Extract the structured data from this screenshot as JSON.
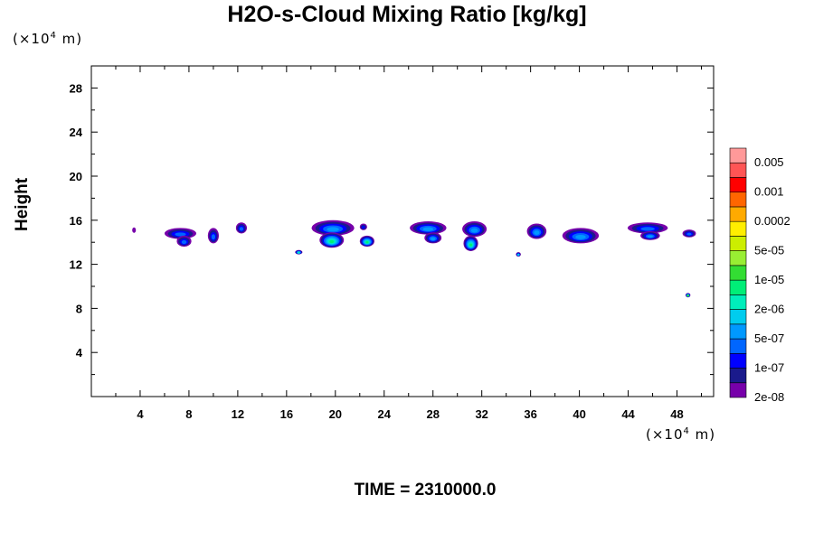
{
  "chart_data": {
    "type": "heatmap",
    "title": "H2O-s-Cloud Mixing Ratio [kg/kg]",
    "ylabel": "Height",
    "xlabel": "",
    "x_unit": {
      "prefix": "(×10",
      "exp": "4",
      "suffix": " m)"
    },
    "y_unit": {
      "prefix": "(×10",
      "exp": "4",
      "suffix": " m)"
    },
    "xlim": [
      0,
      51
    ],
    "ylim": [
      0,
      30
    ],
    "x_ticks": [
      4,
      8,
      12,
      16,
      20,
      24,
      28,
      32,
      36,
      40,
      44,
      48
    ],
    "y_ticks": [
      4,
      8,
      12,
      16,
      20,
      24,
      28
    ],
    "colorbar": {
      "labels": [
        "0.005",
        "0.001",
        "0.0002",
        "5e-05",
        "1e-05",
        "2e-06",
        "5e-07",
        "1e-07",
        "2e-08"
      ],
      "colors": [
        "#7700aa",
        "#1a1a8c",
        "#0000ff",
        "#0066ff",
        "#0099ff",
        "#00ccee",
        "#00eebb",
        "#00ee77",
        "#33dd33",
        "#99ee33",
        "#ccee00",
        "#ffee00",
        "#ffaa00",
        "#ff6600",
        "#ff0000",
        "#ff5555",
        "#ff9999"
      ]
    },
    "clouds": [
      {
        "x": 3.5,
        "y": 15.1,
        "w": 0.3,
        "h": 0.5,
        "max": 0
      },
      {
        "x": 7.3,
        "y": 14.8,
        "w": 2.6,
        "h": 1.0,
        "max": 3
      },
      {
        "x": 7.6,
        "y": 14.1,
        "w": 1.2,
        "h": 1.0,
        "max": 3
      },
      {
        "x": 10.0,
        "y": 14.6,
        "w": 0.9,
        "h": 1.4,
        "max": 3
      },
      {
        "x": 12.3,
        "y": 15.3,
        "w": 0.9,
        "h": 1.0,
        "max": 3
      },
      {
        "x": 19.8,
        "y": 15.3,
        "w": 3.5,
        "h": 1.4,
        "max": 4
      },
      {
        "x": 19.7,
        "y": 14.2,
        "w": 2.0,
        "h": 1.4,
        "max": 7
      },
      {
        "x": 17.0,
        "y": 13.1,
        "w": 0.6,
        "h": 0.4,
        "max": 6
      },
      {
        "x": 22.3,
        "y": 15.4,
        "w": 0.6,
        "h": 0.6,
        "max": 2
      },
      {
        "x": 22.6,
        "y": 14.1,
        "w": 1.2,
        "h": 1.0,
        "max": 7
      },
      {
        "x": 27.6,
        "y": 15.3,
        "w": 3.0,
        "h": 1.2,
        "max": 4
      },
      {
        "x": 28.0,
        "y": 14.4,
        "w": 1.4,
        "h": 1.0,
        "max": 4
      },
      {
        "x": 31.4,
        "y": 15.2,
        "w": 2.0,
        "h": 1.4,
        "max": 4
      },
      {
        "x": 31.1,
        "y": 13.9,
        "w": 1.2,
        "h": 1.4,
        "max": 7
      },
      {
        "x": 35.0,
        "y": 12.9,
        "w": 0.4,
        "h": 0.4,
        "max": 5
      },
      {
        "x": 36.5,
        "y": 15.0,
        "w": 1.6,
        "h": 1.4,
        "max": 4
      },
      {
        "x": 40.1,
        "y": 14.6,
        "w": 3.0,
        "h": 1.4,
        "max": 4
      },
      {
        "x": 45.6,
        "y": 15.3,
        "w": 3.3,
        "h": 1.0,
        "max": 3
      },
      {
        "x": 45.8,
        "y": 14.6,
        "w": 1.6,
        "h": 0.8,
        "max": 4
      },
      {
        "x": 49.0,
        "y": 14.8,
        "w": 1.1,
        "h": 0.7,
        "max": 3
      },
      {
        "x": 48.9,
        "y": 9.2,
        "w": 0.4,
        "h": 0.4,
        "max": 8
      }
    ]
  },
  "footer": {
    "time_label": "TIME = 2310000.0"
  }
}
